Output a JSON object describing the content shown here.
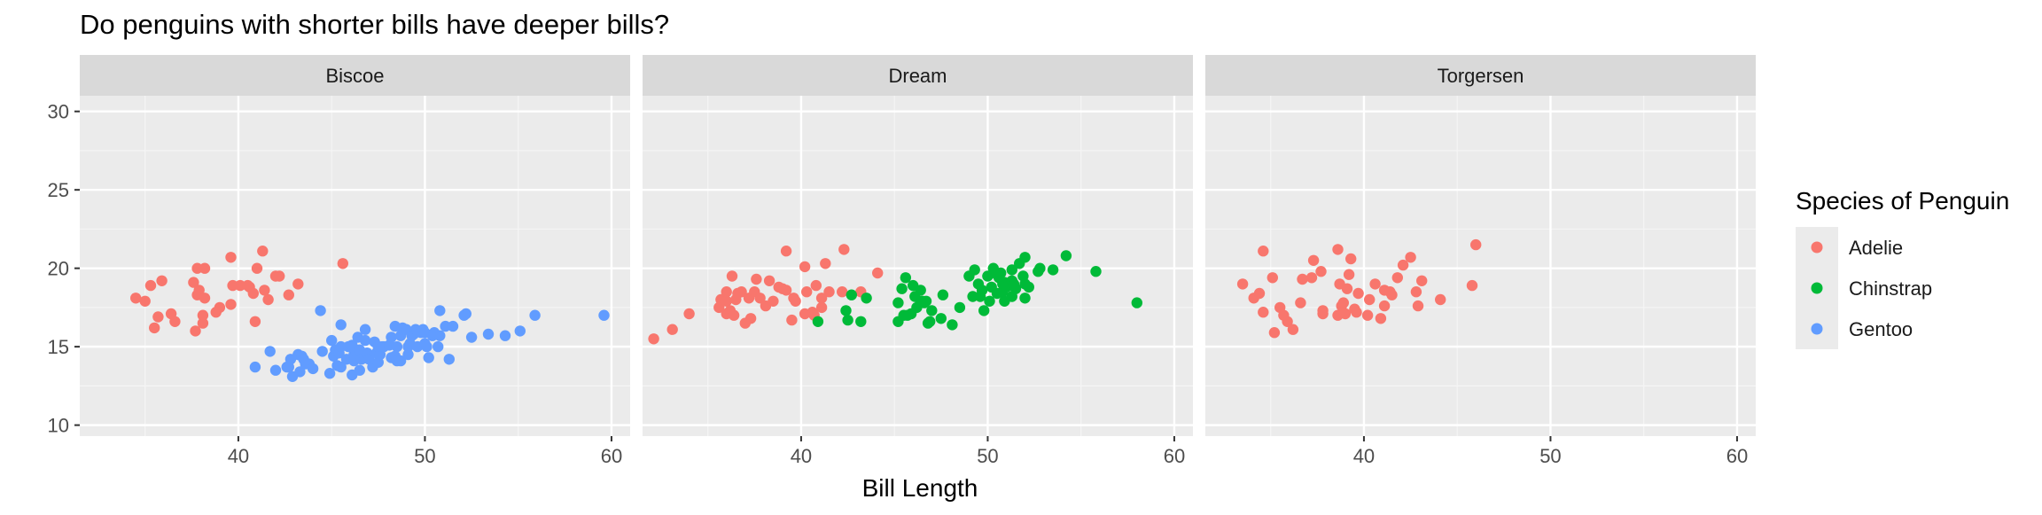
{
  "chart_data": {
    "type": "scatter",
    "title": "Do penguins with shorter bills have deeper bills?",
    "xlabel": "Bill Length",
    "ylabel": "",
    "xlim": [
      31.5,
      61
    ],
    "ylim": [
      9.3,
      31
    ],
    "x_ticks": [
      40,
      50,
      60
    ],
    "y_ticks": [
      10,
      15,
      20,
      25,
      30
    ],
    "grid": true,
    "facets": [
      "Biscoe",
      "Dream",
      "Torgersen"
    ],
    "legend": {
      "title": "Species of Penguin",
      "placement": "right",
      "entries": [
        "Adelie",
        "Chinstrap",
        "Gentoo"
      ]
    },
    "series": [
      {
        "name": "Adelie",
        "color": "#F8766D"
      },
      {
        "name": "Chinstrap",
        "color": "#00BA38"
      },
      {
        "name": "Gentoo",
        "color": "#619CFF"
      }
    ],
    "points": {
      "Biscoe": {
        "Adelie": [
          [
            34.5,
            18.1
          ],
          [
            35.0,
            17.9
          ],
          [
            35.3,
            18.9
          ],
          [
            35.5,
            16.2
          ],
          [
            35.7,
            16.9
          ],
          [
            35.9,
            19.2
          ],
          [
            36.4,
            17.1
          ],
          [
            36.6,
            16.6
          ],
          [
            37.6,
            19.1
          ],
          [
            37.7,
            16.0
          ],
          [
            37.8,
            18.3
          ],
          [
            37.9,
            18.6
          ],
          [
            37.8,
            20.0
          ],
          [
            38.1,
            17.0
          ],
          [
            38.1,
            16.5
          ],
          [
            38.2,
            20.0
          ],
          [
            38.2,
            18.1
          ],
          [
            38.8,
            17.2
          ],
          [
            39.0,
            17.5
          ],
          [
            39.6,
            17.7
          ],
          [
            39.6,
            20.7
          ],
          [
            39.7,
            18.9
          ],
          [
            40.1,
            18.9
          ],
          [
            40.5,
            18.9
          ],
          [
            40.6,
            18.8
          ],
          [
            40.8,
            18.4
          ],
          [
            40.9,
            16.6
          ],
          [
            41.0,
            20.0
          ],
          [
            41.3,
            21.1
          ],
          [
            41.4,
            18.6
          ],
          [
            41.6,
            18.0
          ],
          [
            42.0,
            19.5
          ],
          [
            42.2,
            19.5
          ],
          [
            42.7,
            18.3
          ],
          [
            43.2,
            19.0
          ],
          [
            45.6,
            20.3
          ]
        ],
        "Gentoo": [
          [
            40.9,
            13.7
          ],
          [
            41.7,
            14.7
          ],
          [
            42.0,
            13.5
          ],
          [
            42.6,
            13.7
          ],
          [
            42.7,
            13.7
          ],
          [
            42.8,
            14.2
          ],
          [
            42.9,
            13.1
          ],
          [
            43.2,
            14.5
          ],
          [
            43.3,
            13.4
          ],
          [
            43.4,
            14.4
          ],
          [
            43.5,
            14.2
          ],
          [
            43.6,
            13.9
          ],
          [
            43.8,
            13.9
          ],
          [
            44.0,
            13.6
          ],
          [
            44.4,
            17.3
          ],
          [
            44.5,
            14.7
          ],
          [
            44.9,
            13.3
          ],
          [
            45.0,
            15.4
          ],
          [
            45.1,
            14.4
          ],
          [
            45.2,
            14.8
          ],
          [
            45.3,
            13.8
          ],
          [
            45.4,
            14.6
          ],
          [
            45.5,
            13.7
          ],
          [
            45.5,
            15.0
          ],
          [
            45.5,
            16.4
          ],
          [
            45.8,
            14.2
          ],
          [
            45.9,
            15.0
          ],
          [
            46.1,
            13.2
          ],
          [
            46.1,
            15.1
          ],
          [
            46.2,
            14.5
          ],
          [
            46.2,
            14.1
          ],
          [
            46.4,
            15.6
          ],
          [
            46.5,
            13.5
          ],
          [
            46.5,
            14.8
          ],
          [
            46.6,
            14.2
          ],
          [
            46.8,
            15.4
          ],
          [
            46.8,
            14.3
          ],
          [
            46.8,
            16.1
          ],
          [
            46.9,
            14.6
          ],
          [
            47.0,
            14.2
          ],
          [
            47.2,
            13.7
          ],
          [
            47.3,
            15.3
          ],
          [
            47.4,
            14.6
          ],
          [
            47.5,
            14.0
          ],
          [
            47.5,
            15.0
          ],
          [
            47.6,
            14.5
          ],
          [
            47.7,
            15.0
          ],
          [
            47.8,
            15.0
          ],
          [
            48.1,
            15.1
          ],
          [
            48.2,
            14.3
          ],
          [
            48.2,
            15.6
          ],
          [
            48.4,
            14.4
          ],
          [
            48.4,
            16.3
          ],
          [
            48.5,
            14.1
          ],
          [
            48.5,
            15.0
          ],
          [
            48.7,
            14.1
          ],
          [
            48.7,
            15.7
          ],
          [
            48.8,
            16.2
          ],
          [
            49.0,
            16.1
          ],
          [
            49.1,
            14.5
          ],
          [
            49.1,
            15.0
          ],
          [
            49.2,
            15.2
          ],
          [
            49.3,
            15.7
          ],
          [
            49.4,
            15.8
          ],
          [
            49.5,
            16.1
          ],
          [
            49.6,
            15.0
          ],
          [
            49.6,
            16.0
          ],
          [
            49.8,
            15.9
          ],
          [
            49.9,
            16.1
          ],
          [
            50.0,
            15.2
          ],
          [
            50.0,
            15.9
          ],
          [
            50.1,
            15.0
          ],
          [
            50.2,
            14.3
          ],
          [
            50.4,
            15.7
          ],
          [
            50.5,
            15.9
          ],
          [
            50.7,
            15.0
          ],
          [
            50.8,
            15.7
          ],
          [
            50.8,
            17.3
          ],
          [
            51.1,
            16.3
          ],
          [
            51.3,
            14.2
          ],
          [
            51.5,
            16.3
          ],
          [
            52.1,
            17.0
          ],
          [
            52.2,
            17.1
          ],
          [
            52.5,
            15.6
          ],
          [
            53.4,
            15.8
          ],
          [
            54.3,
            15.7
          ],
          [
            55.1,
            16.0
          ],
          [
            55.9,
            17.0
          ],
          [
            59.6,
            17.0
          ]
        ]
      },
      "Dream": {
        "Adelie": [
          [
            32.1,
            15.5
          ],
          [
            33.1,
            16.1
          ],
          [
            34.0,
            17.1
          ],
          [
            35.6,
            17.5
          ],
          [
            35.7,
            18.0
          ],
          [
            36.0,
            17.1
          ],
          [
            36.0,
            17.9
          ],
          [
            36.0,
            18.5
          ],
          [
            36.2,
            17.3
          ],
          [
            36.3,
            19.5
          ],
          [
            36.4,
            17.0
          ],
          [
            36.5,
            18.0
          ],
          [
            36.6,
            18.4
          ],
          [
            36.8,
            18.5
          ],
          [
            37.0,
            16.5
          ],
          [
            37.2,
            18.1
          ],
          [
            37.3,
            16.8
          ],
          [
            37.5,
            18.5
          ],
          [
            37.6,
            19.3
          ],
          [
            37.8,
            18.1
          ],
          [
            38.1,
            17.6
          ],
          [
            38.3,
            19.2
          ],
          [
            38.5,
            17.9
          ],
          [
            38.8,
            18.8
          ],
          [
            39.0,
            18.7
          ],
          [
            39.2,
            18.6
          ],
          [
            39.2,
            21.1
          ],
          [
            39.5,
            16.7
          ],
          [
            39.6,
            18.1
          ],
          [
            39.7,
            17.9
          ],
          [
            40.2,
            17.1
          ],
          [
            40.2,
            20.1
          ],
          [
            40.3,
            18.5
          ],
          [
            40.6,
            17.2
          ],
          [
            40.7,
            17.0
          ],
          [
            40.8,
            18.9
          ],
          [
            41.1,
            17.5
          ],
          [
            41.1,
            18.1
          ],
          [
            41.3,
            20.3
          ],
          [
            41.5,
            18.5
          ],
          [
            42.2,
            18.5
          ],
          [
            42.3,
            21.2
          ],
          [
            43.2,
            18.5
          ],
          [
            44.1,
            19.7
          ]
        ],
        "Chinstrap": [
          [
            40.9,
            16.6
          ],
          [
            42.4,
            17.3
          ],
          [
            42.5,
            16.7
          ],
          [
            42.7,
            18.3
          ],
          [
            43.2,
            16.6
          ],
          [
            43.5,
            18.1
          ],
          [
            45.2,
            16.6
          ],
          [
            45.2,
            17.8
          ],
          [
            45.4,
            18.7
          ],
          [
            45.5,
            17.0
          ],
          [
            45.6,
            19.4
          ],
          [
            45.7,
            17.0
          ],
          [
            45.9,
            17.1
          ],
          [
            46.0,
            18.9
          ],
          [
            46.1,
            18.2
          ],
          [
            46.2,
            17.5
          ],
          [
            46.4,
            18.6
          ],
          [
            46.4,
            17.8
          ],
          [
            46.5,
            17.9
          ],
          [
            46.6,
            17.8
          ],
          [
            46.7,
            17.9
          ],
          [
            46.8,
            16.5
          ],
          [
            46.9,
            16.6
          ],
          [
            47.0,
            17.3
          ],
          [
            47.5,
            16.8
          ],
          [
            47.6,
            18.3
          ],
          [
            48.1,
            16.4
          ],
          [
            48.5,
            17.5
          ],
          [
            49.0,
            19.5
          ],
          [
            49.2,
            18.2
          ],
          [
            49.3,
            19.9
          ],
          [
            49.5,
            19.0
          ],
          [
            49.6,
            18.2
          ],
          [
            49.7,
            18.6
          ],
          [
            49.8,
            17.3
          ],
          [
            50.0,
            19.5
          ],
          [
            50.1,
            17.9
          ],
          [
            50.2,
            18.8
          ],
          [
            50.3,
            20.0
          ],
          [
            50.5,
            18.4
          ],
          [
            50.5,
            19.6
          ],
          [
            50.6,
            19.4
          ],
          [
            50.7,
            19.7
          ],
          [
            50.8,
            18.5
          ],
          [
            50.8,
            19.0
          ],
          [
            50.9,
            17.9
          ],
          [
            50.9,
            19.1
          ],
          [
            51.0,
            18.8
          ],
          [
            51.3,
            18.2
          ],
          [
            51.3,
            19.2
          ],
          [
            51.3,
            19.9
          ],
          [
            51.4,
            19.0
          ],
          [
            51.5,
            18.7
          ],
          [
            51.7,
            20.3
          ],
          [
            51.9,
            19.5
          ],
          [
            52.0,
            18.1
          ],
          [
            52.0,
            19.0
          ],
          [
            52.0,
            20.7
          ],
          [
            52.2,
            18.8
          ],
          [
            52.7,
            19.8
          ],
          [
            52.8,
            20.0
          ],
          [
            53.5,
            19.9
          ],
          [
            54.2,
            20.8
          ],
          [
            55.8,
            19.8
          ],
          [
            58.0,
            17.8
          ]
        ]
      },
      "Torgersen": {
        "Adelie": [
          [
            33.5,
            19.0
          ],
          [
            34.1,
            18.1
          ],
          [
            34.4,
            18.4
          ],
          [
            34.6,
            17.2
          ],
          [
            34.6,
            21.1
          ],
          [
            35.1,
            19.4
          ],
          [
            35.2,
            15.9
          ],
          [
            35.5,
            17.5
          ],
          [
            35.7,
            17.0
          ],
          [
            35.9,
            16.6
          ],
          [
            36.2,
            16.1
          ],
          [
            36.6,
            17.8
          ],
          [
            36.7,
            19.3
          ],
          [
            37.2,
            19.4
          ],
          [
            37.3,
            20.5
          ],
          [
            37.7,
            19.8
          ],
          [
            37.8,
            17.1
          ],
          [
            37.8,
            17.3
          ],
          [
            38.6,
            21.2
          ],
          [
            38.6,
            17.0
          ],
          [
            38.7,
            19.0
          ],
          [
            38.8,
            17.6
          ],
          [
            38.9,
            17.8
          ],
          [
            39.0,
            17.1
          ],
          [
            39.1,
            18.7
          ],
          [
            39.2,
            19.6
          ],
          [
            39.3,
            20.6
          ],
          [
            39.5,
            17.4
          ],
          [
            39.6,
            17.2
          ],
          [
            39.7,
            18.4
          ],
          [
            40.2,
            17.0
          ],
          [
            40.3,
            18.0
          ],
          [
            40.6,
            19.0
          ],
          [
            40.9,
            16.8
          ],
          [
            41.1,
            18.6
          ],
          [
            41.1,
            17.6
          ],
          [
            41.4,
            18.5
          ],
          [
            41.5,
            18.3
          ],
          [
            41.8,
            19.4
          ],
          [
            42.1,
            20.2
          ],
          [
            42.5,
            20.7
          ],
          [
            42.8,
            18.5
          ],
          [
            42.9,
            17.6
          ],
          [
            43.1,
            19.2
          ],
          [
            44.1,
            18.0
          ],
          [
            45.8,
            18.9
          ],
          [
            46.0,
            21.5
          ]
        ]
      }
    }
  }
}
